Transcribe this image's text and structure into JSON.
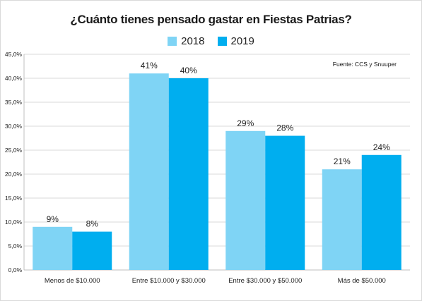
{
  "chart_data": {
    "type": "bar",
    "title": "¿Cuánto tienes pensado gastar en Fiestas Patrias?",
    "source": "Fuente: CCS y Snuuper",
    "categories": [
      "Menos de $10.000",
      "Entre $10.000 y $30.000",
      "Entre $30.000 y $50.000",
      "Más de $50.000"
    ],
    "series": [
      {
        "name": "2018",
        "values": [
          9,
          41,
          29,
          21
        ],
        "labels": [
          "9%",
          "41%",
          "29%",
          "21%"
        ],
        "color": "#7fd4f5"
      },
      {
        "name": "2019",
        "values": [
          8,
          40,
          28,
          24
        ],
        "labels": [
          "8%",
          "40%",
          "28%",
          "24%"
        ],
        "color": "#00aeef"
      }
    ],
    "ylim": [
      0,
      45
    ],
    "yticks": [
      0,
      5,
      10,
      15,
      20,
      25,
      30,
      35,
      40,
      45
    ],
    "ytick_labels": [
      "0,0%",
      "5,0%",
      "10,0%",
      "15,0%",
      "20,0%",
      "25,0%",
      "30,0%",
      "35,0%",
      "40,0%",
      "45,0%"
    ],
    "grid": true,
    "legend_position": "top-center"
  }
}
